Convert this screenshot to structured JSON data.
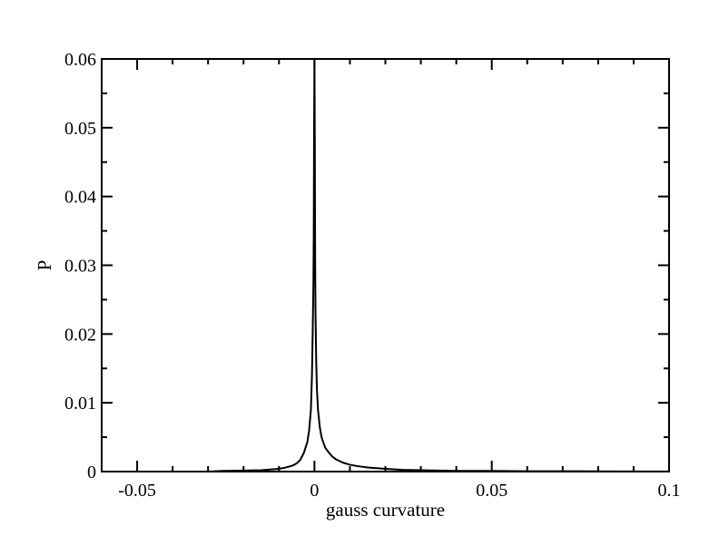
{
  "chart_data": {
    "type": "line",
    "title": "",
    "xlabel": "gauss curvature",
    "ylabel": "P",
    "xlim": [
      -0.06,
      0.1
    ],
    "ylim": [
      0,
      0.06
    ],
    "xticks": [
      -0.05,
      0,
      0.05,
      0.1
    ],
    "xtick_labels": [
      "-0.05",
      "0",
      "0.05",
      "0.1"
    ],
    "yticks": [
      0,
      0.01,
      0.02,
      0.03,
      0.04,
      0.05,
      0.06
    ],
    "ytick_labels": [
      "0",
      "0.01",
      "0.02",
      "0.03",
      "0.04",
      "0.05",
      "0.06"
    ],
    "grid": false,
    "legend": "none",
    "line_color": "#000000",
    "series": [
      {
        "x": [
          -0.04,
          -0.03,
          -0.026,
          -0.02,
          -0.015,
          -0.01,
          -0.008,
          -0.006,
          -0.005,
          -0.004,
          -0.003,
          -0.002,
          -0.0015,
          -0.001,
          -0.0007,
          -0.0005,
          -0.0003,
          -0.0002,
          -0.0001,
          0.0,
          0.0001,
          0.0002,
          0.0003,
          0.0005,
          0.0007,
          0.001,
          0.0015,
          0.002,
          0.003,
          0.004,
          0.005,
          0.006,
          0.008,
          0.01,
          0.012,
          0.015,
          0.02,
          0.025,
          0.03,
          0.035,
          0.04,
          0.05,
          0.06,
          0.07,
          0.08,
          0.09,
          0.1
        ],
        "y": [
          0.0,
          0.0,
          0.0001,
          0.00015,
          0.0002,
          0.0004,
          0.0006,
          0.0009,
          0.0012,
          0.0017,
          0.0027,
          0.0043,
          0.006,
          0.009,
          0.014,
          0.02,
          0.027,
          0.034,
          0.05,
          0.06,
          0.048,
          0.03,
          0.023,
          0.016,
          0.012,
          0.009,
          0.0065,
          0.005,
          0.0035,
          0.0028,
          0.0022,
          0.0018,
          0.0013,
          0.001,
          0.0008,
          0.0006,
          0.0004,
          0.00025,
          0.0002,
          0.00015,
          0.0001,
          0.0001,
          5e-05,
          5e-05,
          3e-05,
          2e-05,
          2e-05
        ]
      }
    ]
  }
}
